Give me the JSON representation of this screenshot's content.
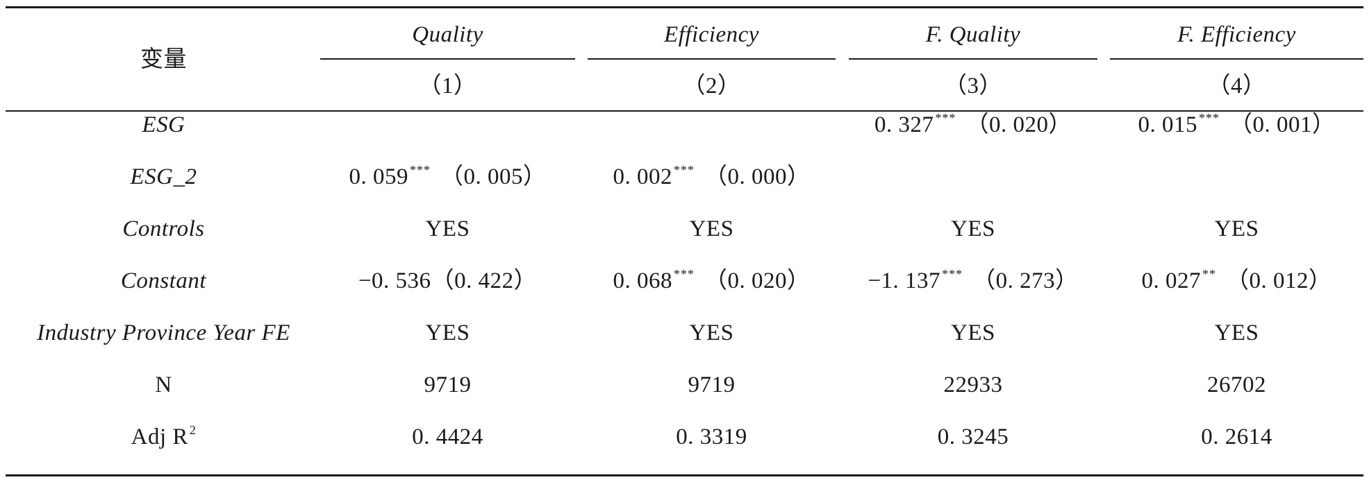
{
  "table": {
    "header": {
      "var_label": "变量",
      "cols": [
        {
          "name": "Quality",
          "num": "（1）"
        },
        {
          "name": "Efficiency",
          "num": "（2）"
        },
        {
          "name": "F. Quality",
          "num": "（3）"
        },
        {
          "name": "F. Efficiency",
          "num": "（4）"
        }
      ]
    },
    "rows": [
      {
        "label": "ESG",
        "cells": [
          {
            "coef": "",
            "stars": "",
            "se": ""
          },
          {
            "coef": "",
            "stars": "",
            "se": ""
          },
          {
            "coef": "0. 327",
            "stars": "***",
            "se": "（0. 020）"
          },
          {
            "coef": "0. 015",
            "stars": "***",
            "se": "（0. 001）"
          }
        ]
      },
      {
        "label": "ESG_2",
        "cells": [
          {
            "coef": "0. 059",
            "stars": "***",
            "se": "（0. 005）"
          },
          {
            "coef": "0. 002",
            "stars": "***",
            "se": "（0. 000）"
          },
          {
            "coef": "",
            "stars": "",
            "se": ""
          },
          {
            "coef": "",
            "stars": "",
            "se": ""
          }
        ]
      },
      {
        "label": "Controls",
        "cells": [
          {
            "coef": "YES",
            "stars": "",
            "se": ""
          },
          {
            "coef": "YES",
            "stars": "",
            "se": ""
          },
          {
            "coef": "YES",
            "stars": "",
            "se": ""
          },
          {
            "coef": "YES",
            "stars": "",
            "se": ""
          }
        ]
      },
      {
        "label": "Constant",
        "cells": [
          {
            "coef": "−0. 536",
            "stars": "",
            "se": "（0. 422）"
          },
          {
            "coef": "0. 068",
            "stars": "***",
            "se": "（0. 020）"
          },
          {
            "coef": "−1. 137",
            "stars": "***",
            "se": "（0. 273）"
          },
          {
            "coef": "0. 027",
            "stars": "**",
            "se": "（0. 012）"
          }
        ]
      },
      {
        "label": "Industry Province Year FE",
        "cells": [
          {
            "coef": "YES",
            "stars": "",
            "se": ""
          },
          {
            "coef": "YES",
            "stars": "",
            "se": ""
          },
          {
            "coef": "YES",
            "stars": "",
            "se": ""
          },
          {
            "coef": "YES",
            "stars": "",
            "se": ""
          }
        ]
      },
      {
        "label": "N",
        "cells": [
          {
            "coef": "9719",
            "stars": "",
            "se": ""
          },
          {
            "coef": "9719",
            "stars": "",
            "se": ""
          },
          {
            "coef": "22933",
            "stars": "",
            "se": ""
          },
          {
            "coef": "26702",
            "stars": "",
            "se": ""
          }
        ]
      },
      {
        "label": "Adj R",
        "label_sup": "2",
        "cells": [
          {
            "coef": "0. 4424",
            "stars": "",
            "se": ""
          },
          {
            "coef": "0. 3319",
            "stars": "",
            "se": ""
          },
          {
            "coef": "0. 3245",
            "stars": "",
            "se": ""
          },
          {
            "coef": "0. 2614",
            "stars": "",
            "se": ""
          }
        ]
      }
    ]
  }
}
